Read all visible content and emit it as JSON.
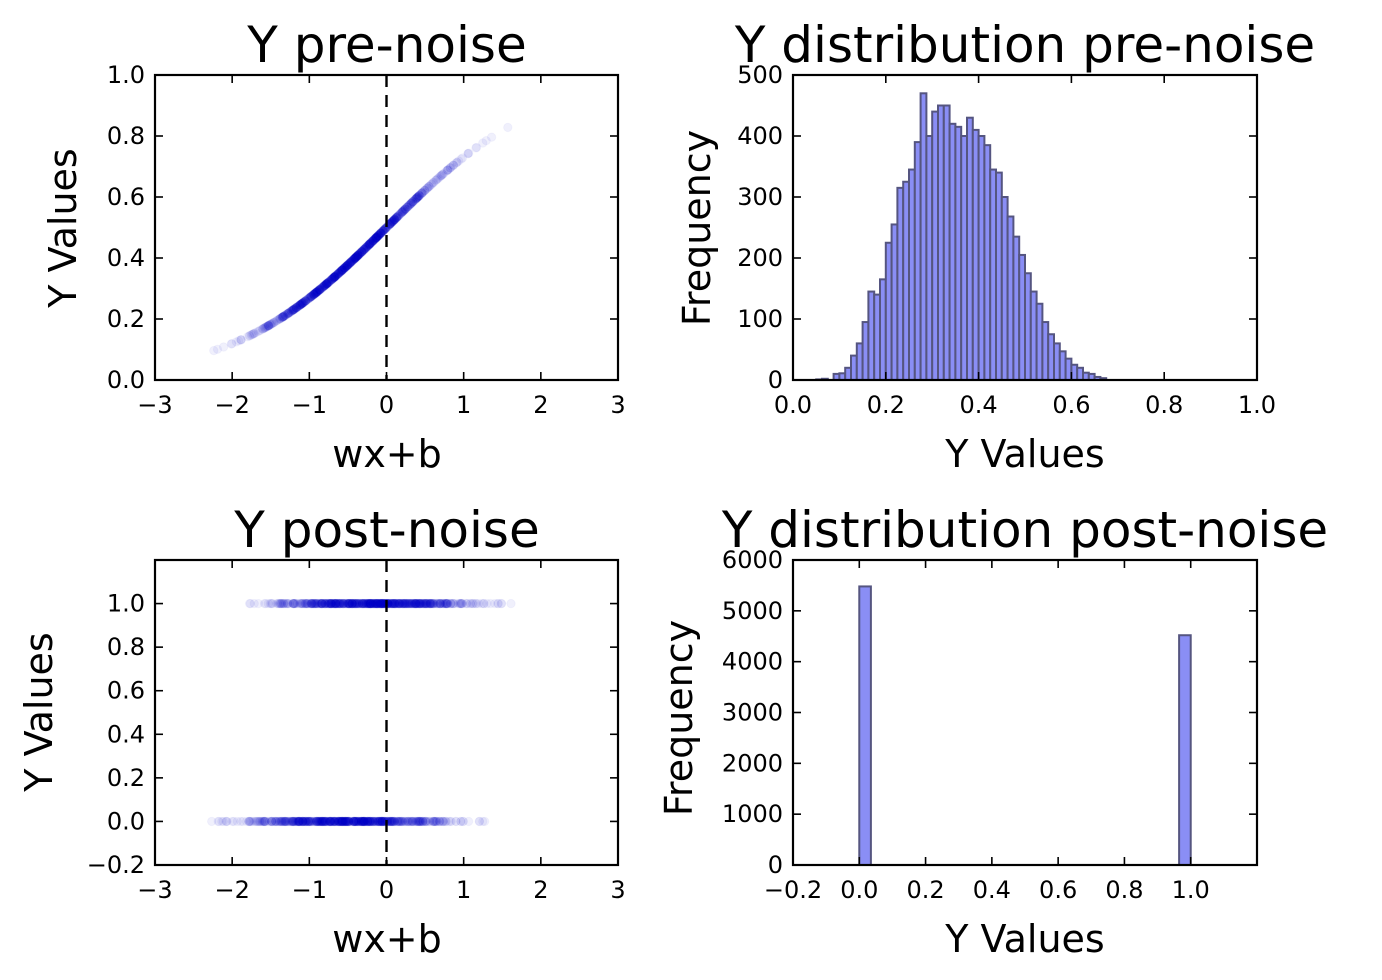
{
  "chart_data": [
    {
      "id": "top-left",
      "type": "scatter",
      "title": "Y pre-noise",
      "xlabel": "wx+b",
      "ylabel": "Y Values",
      "xlim": [
        -3,
        3
      ],
      "ylim": [
        0,
        1
      ],
      "xticks": [
        -3,
        -2,
        -1,
        0,
        1,
        2,
        3
      ],
      "yticks": [
        0.0,
        0.2,
        0.4,
        0.6,
        0.8,
        1.0
      ],
      "point_color": "#0000cc",
      "vline_x": 0,
      "curve": "sigmoid",
      "x_range": [
        -2.6,
        1.75
      ],
      "point_alpha": 0.06,
      "grid": false
    },
    {
      "id": "top-right",
      "type": "bar",
      "title": "Y distribution pre-noise",
      "xlabel": "Y Values",
      "ylabel": "Frequency",
      "xlim": [
        0,
        1
      ],
      "ylim": [
        0,
        500
      ],
      "xticks": [
        0.0,
        0.2,
        0.4,
        0.6,
        0.8,
        1.0
      ],
      "yticks": [
        0,
        100,
        200,
        300,
        400,
        500
      ],
      "bar_color": "#8a8ef5",
      "edge_color": "#555580",
      "bin_start": 0.05,
      "bin_width": 0.0125,
      "values": [
        1,
        2,
        0,
        10,
        11,
        20,
        40,
        60,
        95,
        145,
        140,
        165,
        225,
        255,
        315,
        325,
        345,
        390,
        470,
        400,
        440,
        450,
        450,
        420,
        415,
        400,
        430,
        410,
        400,
        385,
        345,
        340,
        300,
        268,
        235,
        205,
        175,
        145,
        125,
        95,
        75,
        60,
        47,
        35,
        25,
        20,
        12,
        10,
        5,
        3
      ],
      "grid": false
    },
    {
      "id": "bottom-left",
      "type": "scatter",
      "title": "Y post-noise",
      "xlabel": "wx+b",
      "ylabel": "Y Values",
      "xlim": [
        -3,
        3
      ],
      "ylim": [
        -0.2,
        1.2
      ],
      "xticks": [
        -3,
        -2,
        -1,
        0,
        1,
        2,
        3
      ],
      "yticks": [
        -0.2,
        0.0,
        0.2,
        0.4,
        0.6,
        0.8,
        1.0
      ],
      "point_color": "#0000cc",
      "vline_x": 0,
      "rows": [
        {
          "y": 1.0,
          "x_range": [
            -2.2,
            1.9
          ]
        },
        {
          "y": 0.0,
          "x_range": [
            -2.6,
            1.5
          ]
        }
      ],
      "point_alpha": 0.06,
      "grid": false
    },
    {
      "id": "bottom-right",
      "type": "bar",
      "title": "Y distribution post-noise",
      "xlabel": "Y Values",
      "ylabel": "Frequency",
      "xlim": [
        -0.2,
        1.2
      ],
      "ylim": [
        0,
        6000
      ],
      "xticks": [
        -0.2,
        0.0,
        0.2,
        0.4,
        0.6,
        0.8,
        1.0
      ],
      "yticks": [
        0,
        1000,
        2000,
        3000,
        4000,
        5000,
        6000
      ],
      "bar_color": "#8a8ef5",
      "edge_color": "#555580",
      "bars": [
        {
          "x0": 0.0,
          "x1": 0.035,
          "value": 5480
        },
        {
          "x0": 0.965,
          "x1": 1.0,
          "value": 4520
        }
      ],
      "grid": false
    }
  ]
}
